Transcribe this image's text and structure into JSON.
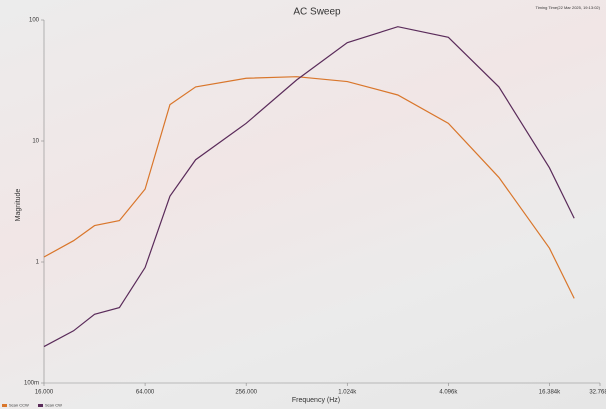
{
  "chart_data": {
    "type": "line",
    "title": "AC Sweep",
    "timestamp": "Timing Time(22 Mar 2025, 19:13:02)",
    "x_label": "Frequency (Hz)",
    "y_label": "Magnitude",
    "x": [
      16,
      24,
      32,
      45,
      64,
      90,
      128,
      256,
      512,
      1024,
      2048,
      4096,
      8192,
      16384,
      23000
    ],
    "series": [
      {
        "name": "Scan CCW",
        "color": "#d9762b",
        "values": [
          1.1,
          1.5,
          2.0,
          2.2,
          4,
          20,
          28,
          33,
          34,
          31,
          24,
          14,
          5,
          1.3,
          0.5
        ]
      },
      {
        "name": "Scan CW",
        "color": "#5a2b5a",
        "values": [
          0.2,
          0.27,
          0.37,
          0.42,
          0.9,
          3.5,
          7,
          14,
          32,
          65,
          88,
          72,
          28,
          6,
          2.3
        ]
      }
    ],
    "xlog": true,
    "ylog": true,
    "xlim": [
      16,
      32768
    ],
    "ylim": [
      0.1,
      100
    ],
    "xticks": [
      {
        "value": 16,
        "label": "16.000"
      },
      {
        "value": 64,
        "label": "64.000"
      },
      {
        "value": 256,
        "label": "256.000"
      },
      {
        "value": 1024,
        "label": "1.024k"
      },
      {
        "value": 4096,
        "label": "4.096k"
      },
      {
        "value": 16384,
        "label": "16.384k"
      },
      {
        "value": 32768,
        "label": "32.768k"
      }
    ],
    "yticks": [
      {
        "value": 0.1,
        "label": "100m"
      },
      1,
      10,
      100
    ]
  }
}
